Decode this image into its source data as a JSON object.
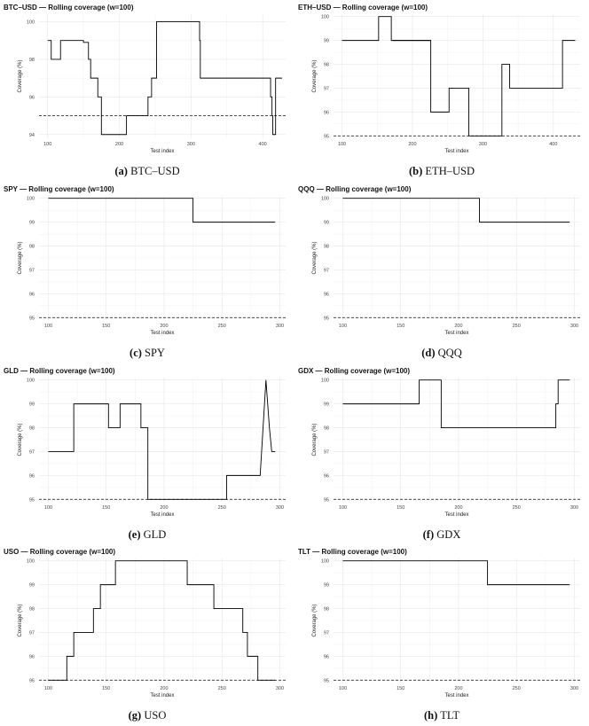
{
  "figure": {
    "grid_color": "#e6e6e6",
    "line_color": "#000000"
  },
  "chart_data": [
    {
      "key": "btc",
      "type": "line",
      "title": "BTC–USD — Rolling coverage (w=100)",
      "caption_label": "(a)",
      "caption_name": "BTC–USD",
      "xlabel": "Test index",
      "ylabel": "Coverage (%)",
      "xlim": [
        88,
        432
      ],
      "ylim": [
        93.8,
        100.4
      ],
      "xticks": [
        100,
        200,
        300,
        400
      ],
      "yticks": [
        94,
        96,
        98,
        100
      ],
      "reference_line": 95,
      "x": [
        100,
        105,
        105,
        118,
        118,
        133,
        133,
        150,
        150,
        157,
        157,
        160,
        160,
        170,
        170,
        175,
        175,
        190,
        190,
        210,
        210,
        240,
        240,
        241,
        241,
        245,
        245,
        252,
        252,
        272,
        272,
        293,
        293,
        300,
        300,
        312,
        312,
        313,
        313,
        315,
        315,
        411,
        411,
        413,
        413,
        414,
        414,
        418,
        418,
        427
      ],
      "y": [
        99,
        99,
        98,
        98,
        99,
        99,
        99,
        99,
        98.9,
        98.9,
        98,
        98,
        97,
        97,
        96,
        96,
        94,
        94,
        94,
        94,
        95,
        95,
        96,
        96,
        96,
        96,
        97,
        97,
        100,
        100,
        100,
        100,
        100,
        100,
        100,
        100,
        99,
        99,
        97,
        97,
        97,
        97,
        96,
        96,
        95,
        95,
        94,
        94,
        97,
        97
      ]
    },
    {
      "key": "eth",
      "type": "line",
      "title": "ETH–USD — Rolling coverage (w=100)",
      "caption_label": "(b)",
      "caption_name": "ETH–USD",
      "xlabel": "Test index",
      "ylabel": "Coverage (%)",
      "xlim": [
        88,
        438
      ],
      "ylim": [
        94.9,
        100.1
      ],
      "xticks": [
        100,
        200,
        300,
        400
      ],
      "yticks": [
        95,
        96,
        97,
        98,
        99,
        100
      ],
      "reference_line": 95,
      "x": [
        100,
        152,
        152,
        170,
        170,
        226,
        226,
        252,
        252,
        280,
        280,
        327,
        327,
        338,
        338,
        413,
        413,
        421,
        421,
        431
      ],
      "y": [
        99,
        99,
        100,
        100,
        99,
        99,
        96,
        96,
        97,
        97,
        95,
        95,
        98,
        98,
        97,
        97,
        99,
        99,
        99,
        99
      ],
      "extra_segments": [
        [
          [
            172,
            99
          ],
          [
            226,
            99
          ]
        ]
      ]
    },
    {
      "key": "spy",
      "type": "line",
      "title": "SPY — Rolling coverage (w=100)",
      "caption_label": "(c)",
      "caption_name": "SPY",
      "xlabel": "Test index",
      "ylabel": "Coverage (%)",
      "xlim": [
        92,
        305
      ],
      "ylim": [
        94.9,
        100.1
      ],
      "xticks": [
        100,
        150,
        200,
        250,
        300
      ],
      "yticks": [
        95,
        96,
        97,
        98,
        99,
        100
      ],
      "reference_line": 95,
      "x": [
        100,
        225,
        225,
        296
      ],
      "y": [
        100,
        100,
        99,
        99
      ]
    },
    {
      "key": "qqq",
      "type": "line",
      "title": "QQQ — Rolling coverage (w=100)",
      "caption_label": "(d)",
      "caption_name": "QQQ",
      "xlabel": "Test index",
      "ylabel": "Coverage (%)",
      "xlim": [
        92,
        305
      ],
      "ylim": [
        94.9,
        100.1
      ],
      "xticks": [
        100,
        150,
        200,
        250,
        300
      ],
      "yticks": [
        95,
        96,
        97,
        98,
        99,
        100
      ],
      "reference_line": 95,
      "x": [
        100,
        218,
        218,
        296
      ],
      "y": [
        100,
        100,
        99,
        99
      ]
    },
    {
      "key": "gld",
      "type": "line",
      "title": "GLD — Rolling coverage (w=100)",
      "caption_label": "(e)",
      "caption_name": "GLD",
      "xlabel": "Test index",
      "ylabel": "Coverage (%)",
      "xlim": [
        92,
        305
      ],
      "ylim": [
        94.9,
        100.1
      ],
      "xticks": [
        100,
        150,
        200,
        250,
        300
      ],
      "yticks": [
        95,
        96,
        97,
        98,
        99,
        100
      ],
      "reference_line": 95,
      "x": [
        100,
        122,
        122,
        152,
        152,
        162,
        162,
        180,
        180,
        186,
        186,
        254,
        254,
        283,
        283,
        288,
        288,
        291,
        291,
        293,
        293,
        296
      ],
      "y": [
        97,
        97,
        99,
        99,
        98,
        98,
        99,
        99,
        98,
        98,
        95,
        95,
        96,
        96,
        96,
        100,
        100,
        98,
        98,
        97,
        97,
        97
      ]
    },
    {
      "key": "gdx",
      "type": "line",
      "title": "GDX — Rolling coverage (w=100)",
      "caption_label": "(f)",
      "caption_name": "GDX",
      "xlabel": "Test index",
      "ylabel": "Coverage (%)",
      "xlim": [
        92,
        305
      ],
      "ylim": [
        94.9,
        100.1
      ],
      "xticks": [
        100,
        150,
        200,
        250,
        300
      ],
      "yticks": [
        95,
        96,
        97,
        98,
        99,
        100
      ],
      "reference_line": 95,
      "x": [
        100,
        166,
        166,
        185,
        185,
        284,
        284,
        286,
        286,
        296
      ],
      "y": [
        99,
        99,
        100,
        100,
        98,
        98,
        99,
        99,
        100,
        100
      ]
    },
    {
      "key": "uso",
      "type": "line",
      "title": "USO — Rolling coverage (w=100)",
      "caption_label": "(g)",
      "caption_name": "USO",
      "xlabel": "Test index",
      "ylabel": "Coverage (%)",
      "xlim": [
        92,
        305
      ],
      "ylim": [
        94.9,
        100.1
      ],
      "xticks": [
        100,
        150,
        200,
        250,
        300
      ],
      "yticks": [
        95,
        96,
        97,
        98,
        99,
        100
      ],
      "reference_line": 95,
      "x": [
        100,
        116,
        116,
        122,
        122,
        139,
        139,
        145,
        145,
        158,
        158,
        220,
        220,
        243,
        243,
        268,
        268,
        272,
        272,
        281,
        281,
        296
      ],
      "y": [
        95,
        95,
        96,
        96,
        97,
        97,
        98,
        98,
        99,
        99,
        100,
        100,
        99,
        99,
        98,
        98,
        97,
        97,
        96,
        96,
        95,
        95
      ]
    },
    {
      "key": "tlt",
      "type": "line",
      "title": "TLT — Rolling coverage (w=100)",
      "caption_label": "(h)",
      "caption_name": "TLT",
      "xlabel": "Test index",
      "ylabel": "Coverage (%)",
      "xlim": [
        92,
        305
      ],
      "ylim": [
        94.9,
        100.1
      ],
      "xticks": [
        100,
        150,
        200,
        250,
        300
      ],
      "yticks": [
        95,
        96,
        97,
        98,
        99,
        100
      ],
      "reference_line": 95,
      "x": [
        100,
        225,
        225,
        296
      ],
      "y": [
        100,
        100,
        99,
        99
      ]
    }
  ]
}
